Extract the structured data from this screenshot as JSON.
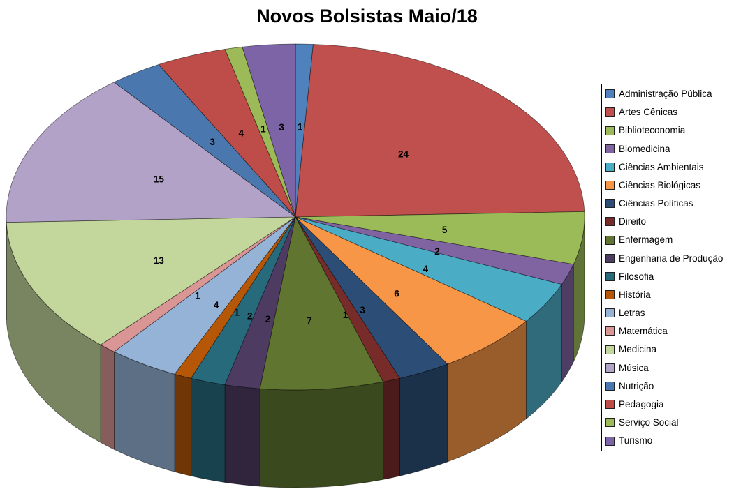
{
  "chart_data": {
    "type": "pie",
    "style": "3d-pie",
    "title": "Novos Bolsistas Maio/18",
    "categories": [
      "Administração Pública",
      "Artes Cênicas",
      "Biblioteconomia",
      "Biomedicina",
      "Ciências Ambientais",
      "Ciências Biológicas",
      "Ciências Políticas",
      "Direito",
      "Enfermagem",
      "Engenharia de Produção",
      "Filosofia",
      "História",
      "Letras",
      "Matemática",
      "Medicina",
      "Música",
      "Nutrição",
      "Pedagogia",
      "Serviço Social",
      "Turismo"
    ],
    "values": [
      1,
      24,
      5,
      2,
      4,
      6,
      3,
      1,
      7,
      2,
      2,
      1,
      4,
      1,
      13,
      15,
      3,
      4,
      1,
      3
    ],
    "colors": [
      "#4F81BD",
      "#C0504D",
      "#9BBB59",
      "#8064A2",
      "#4BACC6",
      "#F79646",
      "#2C4D75",
      "#772C2A",
      "#5F7530",
      "#4D3B62",
      "#276A7C",
      "#B65708",
      "#95B3D7",
      "#D99694",
      "#C3D69B",
      "#B3A2C7",
      "#4A78AE",
      "#BE4C48",
      "#9CBB58",
      "#7C64A7"
    ],
    "total": 102,
    "data_labels": "values",
    "start_angle_deg": 0,
    "direction": "clockwise",
    "legend_position": "right",
    "background": "#FFFFFF"
  }
}
